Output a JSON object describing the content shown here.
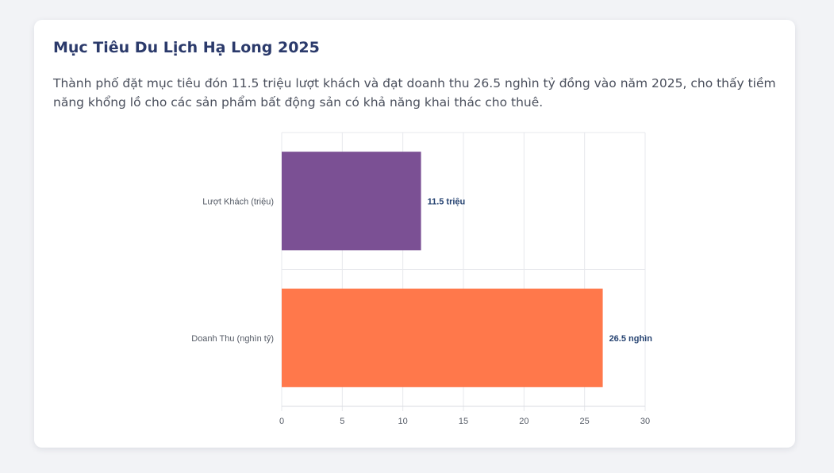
{
  "card": {
    "title": "Mục Tiêu Du Lịch Hạ Long 2025",
    "description": "Thành phố đặt mục tiêu đón 11.5 triệu lượt khách và đạt doanh thu 26.5 nghìn tỷ đồng vào năm 2025, cho thấy tiềm năng khổng lồ cho các sản phẩm bất động sản có khả năng khai thác cho thuê."
  },
  "chart_data": {
    "type": "bar",
    "orientation": "horizontal",
    "categories": [
      "Lượt Khách (triệu)",
      "Doanh Thu (nghìn tỷ)"
    ],
    "values": [
      11.5,
      26.5
    ],
    "data_labels": [
      "11.5 triệu",
      "26.5 nghìn"
    ],
    "colors": [
      "#7b5094",
      "#ff784b"
    ],
    "xlim": [
      0,
      30
    ],
    "x_ticks": [
      0,
      5,
      10,
      15,
      20,
      25,
      30
    ],
    "grid": true,
    "legend": "none"
  }
}
